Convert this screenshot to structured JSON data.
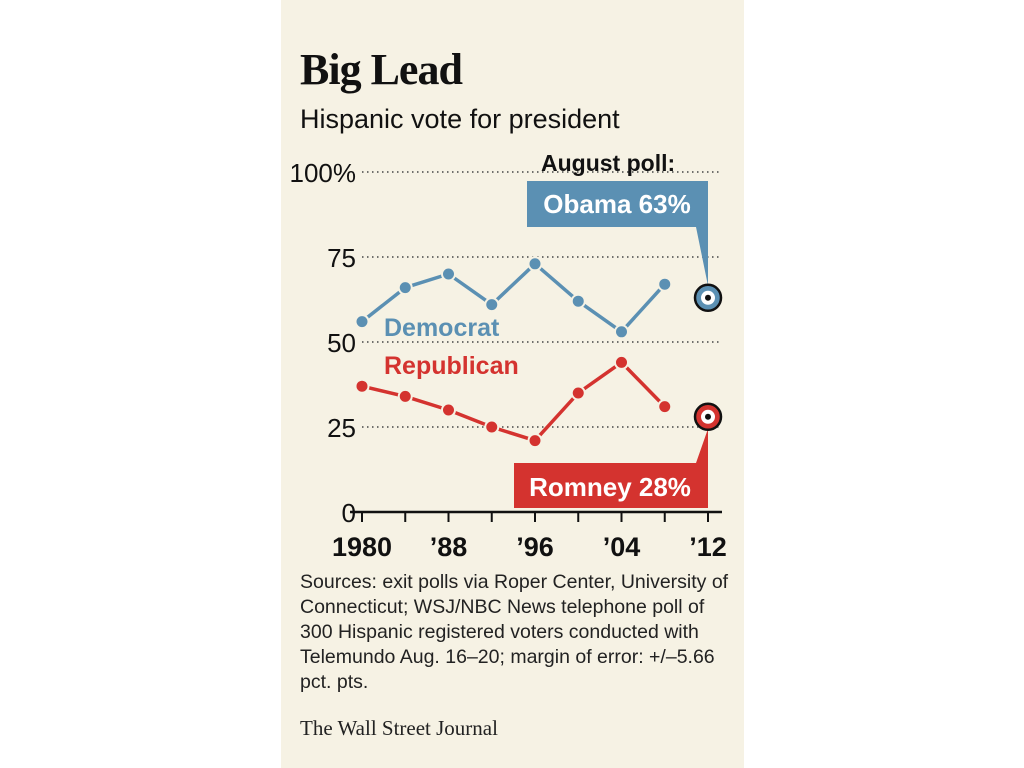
{
  "header": {
    "title": "Big Lead",
    "subtitle": "Hispanic vote for president"
  },
  "colors": {
    "democrat": "#5b90b3",
    "republican": "#d4332f",
    "background": "#f6f2e4",
    "text": "#111111"
  },
  "chart_data": {
    "type": "line",
    "title": "Big Lead",
    "subtitle": "Hispanic vote for president",
    "xlabel": "",
    "ylabel": "",
    "ylim": [
      0,
      100
    ],
    "xlim": [
      1980,
      2012
    ],
    "y_ticks": [
      0,
      25,
      50,
      75,
      100
    ],
    "y_tick_labels": [
      "0",
      "25",
      "50",
      "75",
      "100%"
    ],
    "x_ticks": [
      1980,
      1984,
      1988,
      1992,
      1996,
      2000,
      2004,
      2008,
      2012
    ],
    "x_tick_labels": [
      {
        "x": 1980,
        "label": "1980"
      },
      {
        "x": 1988,
        "label": "’88"
      },
      {
        "x": 1996,
        "label": "’96"
      },
      {
        "x": 2004,
        "label": "’04"
      },
      {
        "x": 2012,
        "label": "’12"
      }
    ],
    "grid": "horizontal dotted",
    "series": [
      {
        "name": "Democrat",
        "color": "#5b90b3",
        "x": [
          1980,
          1984,
          1988,
          1992,
          1996,
          2000,
          2004,
          2008
        ],
        "values": [
          56,
          66,
          70,
          61,
          73,
          62,
          53,
          67
        ]
      },
      {
        "name": "Republican",
        "color": "#d4332f",
        "x": [
          1980,
          1984,
          1988,
          1992,
          1996,
          2000,
          2004,
          2008
        ],
        "values": [
          37,
          34,
          30,
          25,
          21,
          35,
          44,
          31
        ]
      }
    ],
    "highlights": [
      {
        "x": 2012,
        "value": 63,
        "label": "Obama 63%",
        "color": "#5b90b3"
      },
      {
        "x": 2012,
        "value": 28,
        "label": "Romney 28%",
        "color": "#d4332f"
      }
    ],
    "annotations": {
      "poll_heading": "August poll:"
    }
  },
  "footer": {
    "sources": "Sources: exit polls via Roper Center, University of Connecticut; WSJ/NBC News telephone poll of 300 Hispanic registered voters conducted with Telemundo Aug. 16–20; margin of error: +/–5.66 pct. pts.",
    "credit": "The Wall Street Journal"
  }
}
